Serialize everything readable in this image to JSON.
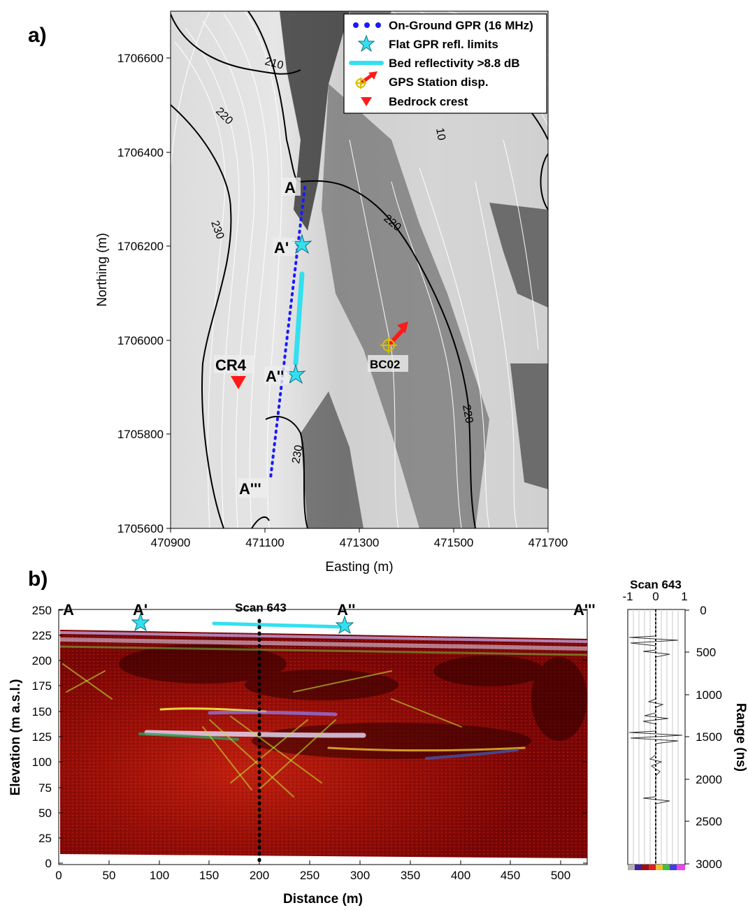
{
  "panel_a": {
    "label": "a)",
    "xlabel": "Easting (m)",
    "ylabel": "Northing (m)",
    "xticks": [
      "470900",
      "471100",
      "471300",
      "471500",
      "471700"
    ],
    "yticks": [
      "1705600",
      "1705800",
      "1706000",
      "1706200",
      "1706400",
      "1706600"
    ],
    "legend": [
      {
        "label": "On-Ground GPR (16 MHz)",
        "icon": "blue-dots"
      },
      {
        "label": "Flat GPR refl. limits",
        "icon": "cyan-star"
      },
      {
        "label": "Bed reflectivity >8.8 dB",
        "icon": "cyan-line"
      },
      {
        "label": "GPS Station disp.",
        "icon": "gps-target-arrow"
      },
      {
        "label": "Bedrock crest",
        "icon": "red-triangle"
      }
    ],
    "points": {
      "A": "A",
      "A1": "A'",
      "A2": "A''",
      "A3": "A'''",
      "CR4": "CR4",
      "BC02": "BC02"
    },
    "contour_labels": [
      "210",
      "220",
      "230",
      "220",
      "220",
      "230",
      "10"
    ]
  },
  "panel_b": {
    "label": "b)",
    "xlabel": "Distance (m)",
    "ylabel": "Elevation (m a.s.l.)",
    "xticks": [
      "0",
      "50",
      "100",
      "150",
      "200",
      "250",
      "300",
      "350",
      "400",
      "450",
      "500"
    ],
    "yticks": [
      "0",
      "25",
      "50",
      "75",
      "100",
      "125",
      "150",
      "175",
      "200",
      "225",
      "250"
    ],
    "scan_label": "Scan 643",
    "profile_labels": [
      "A",
      "A'",
      "A''",
      "A'''"
    ],
    "trace": {
      "title": "Scan 643",
      "xticks": [
        "-1",
        "0",
        "1"
      ],
      "ylabel": "Range (ns)",
      "yticks": [
        "0",
        "500",
        "1000",
        "1500",
        "2000",
        "2500",
        "3000"
      ]
    }
  },
  "colors": {
    "gpr_line": "#1a1aff",
    "reflectivity": "#33e0f0",
    "bedrock_crest": "#ff1a1a",
    "gps_arrow": "#ff1a1a",
    "radargram_base": "#a01010"
  },
  "chart_data": [
    {
      "type": "scatter",
      "panel": "a",
      "xlabel": "Easting (m)",
      "ylabel": "Northing (m)",
      "xlim": [
        470900,
        471700
      ],
      "ylim": [
        1705600,
        1706700
      ],
      "series": [
        {
          "name": "On-Ground GPR (16 MHz)",
          "points": [
            [
              471180,
              1706330
            ],
            [
              471160,
              1705930
            ],
            [
              471110,
              1705700
            ]
          ]
        },
        {
          "name": "Flat GPR refl. limits",
          "points": [
            [
              471178,
              1706200
            ],
            [
              471160,
              1705925
            ]
          ]
        },
        {
          "name": "Bed reflectivity >8.8 dB",
          "points": [
            [
              471180,
              1706140
            ],
            [
              471165,
              1705945
            ]
          ]
        },
        {
          "name": "GPS Station disp.",
          "points": [
            [
              471355,
              1705985
            ]
          ]
        },
        {
          "name": "Bedrock crest",
          "points": [
            [
              471045,
              1705915
            ]
          ]
        }
      ]
    },
    {
      "type": "heatmap",
      "panel": "b",
      "xlabel": "Distance (m)",
      "ylabel": "Elevation (m a.s.l.)",
      "xlim": [
        0,
        530
      ],
      "ylim": [
        0,
        250
      ],
      "surface_elevation": [
        [
          0,
          229
        ],
        [
          100,
          228
        ],
        [
          200,
          227
        ],
        [
          300,
          226
        ],
        [
          400,
          224
        ],
        [
          520,
          221
        ]
      ],
      "bed_reflectivity_segment": [
        [
          155,
          236
        ],
        [
          285,
          233
        ]
      ],
      "flat_limits": [
        [
          82,
          237
        ],
        [
          285,
          234
        ]
      ],
      "scan_distance": 200,
      "reflector_elevations": [
        210,
        155,
        128,
        110
      ]
    },
    {
      "type": "line",
      "panel": "b-trace",
      "xlabel": "",
      "ylabel": "Range (ns)",
      "xlim": [
        -1,
        1
      ],
      "ylim": [
        0,
        3000
      ],
      "strong_returns_ns": [
        330,
        520,
        1080,
        1230,
        1500,
        2200
      ]
    }
  ]
}
